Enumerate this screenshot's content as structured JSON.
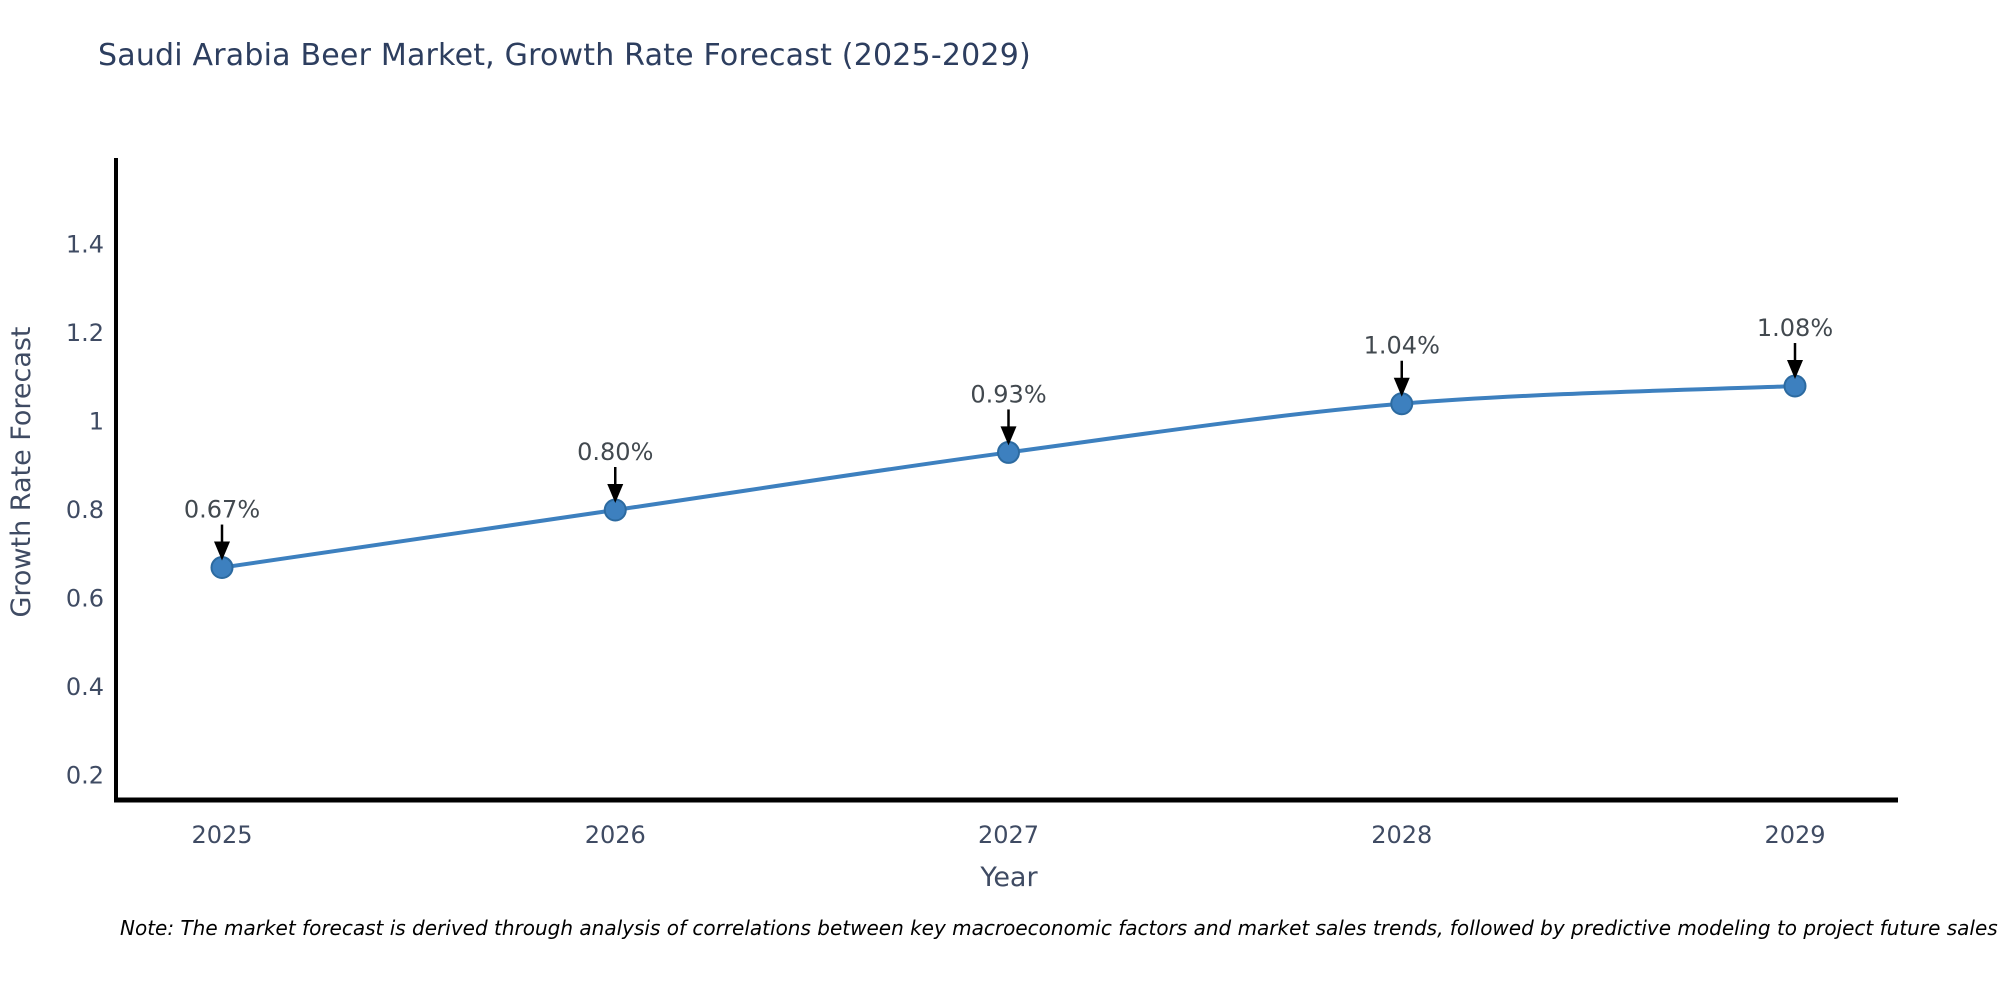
{
  "title": "Saudi Arabia Beer Market, Growth Rate Forecast (2025-2029)",
  "footnote": "Note: The market forecast is derived through analysis of correlations between key macroeconomic factors and market sales trends, followed by predictive modeling to project future sales",
  "chart_data": {
    "type": "line",
    "title": "Saudi Arabia Beer Market, Growth Rate Forecast (2025-2029)",
    "xlabel": "Year",
    "ylabel": "Growth Rate Forecast",
    "categories": [
      "2025",
      "2026",
      "2027",
      "2028",
      "2029"
    ],
    "values": [
      0.67,
      0.8,
      0.93,
      1.04,
      1.08
    ],
    "point_labels": [
      "0.67%",
      "0.80%",
      "0.93%",
      "1.04%",
      "1.08%"
    ],
    "y_tick_values": [
      0.2,
      0.4,
      0.6,
      0.8,
      1.0,
      1.2,
      1.4
    ],
    "y_tick_labels": [
      "0.2",
      "0.4",
      "0.6",
      "0.8",
      "1",
      "1.2",
      "1.4"
    ],
    "ylim": [
      0.145,
      1.595
    ],
    "grid": false,
    "legend": "none",
    "line_shape": "spline",
    "colors": {
      "line": "#3d80bf",
      "marker_fill": "#3d80bf",
      "marker_edge": "#2c6aa0",
      "axis_line": "#000000",
      "title_text": "#2d3e5f",
      "axis_text": "#3f4b63",
      "annotation_text": "#42494f",
      "annotation_arrow": "#000000",
      "footnote_text": "#000000",
      "background": "#ffffff"
    }
  }
}
